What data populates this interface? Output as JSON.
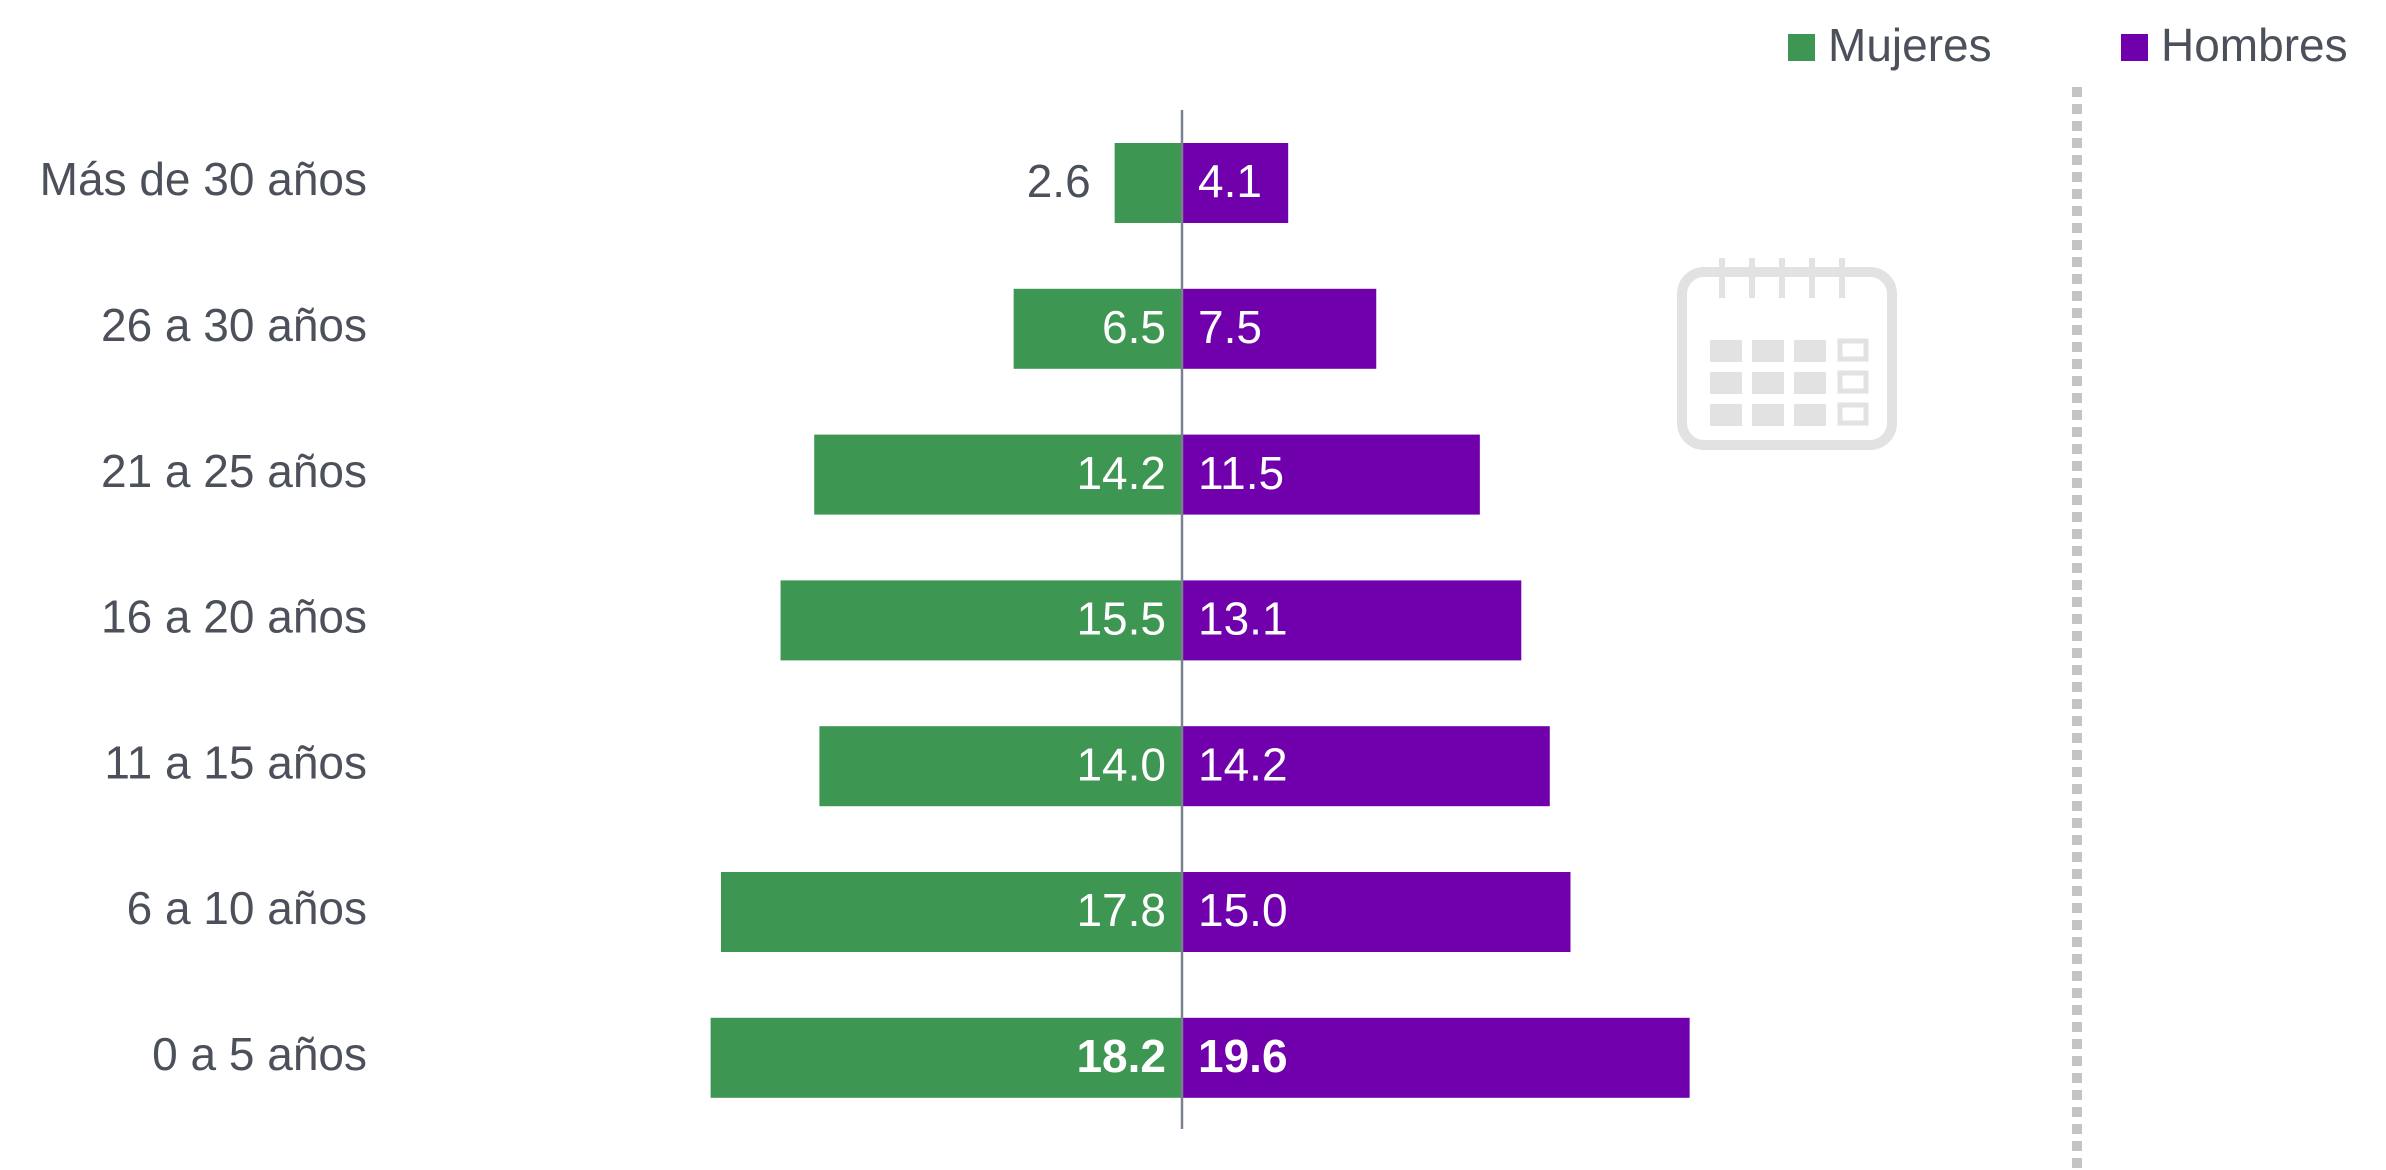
{
  "chart_data": {
    "type": "butterfly",
    "categories": [
      "Más de 30 años",
      "26 a 30 años",
      "21 a 25 años",
      "16 a 20 años",
      "11 a 15 años",
      "6 a 10 años",
      "0 a 5 años"
    ],
    "series": [
      {
        "name": "Mujeres",
        "color": "#3d9651",
        "side": "left",
        "values": [
          2.6,
          6.5,
          14.2,
          15.5,
          14.0,
          17.8,
          18.2
        ],
        "value_labels": [
          "2.6",
          "6.5",
          "14.2",
          "15.5",
          "14.0",
          "17.8",
          "18.2"
        ]
      },
      {
        "name": "Hombres",
        "color": "#7000ac",
        "side": "right",
        "values": [
          4.1,
          7.5,
          11.5,
          13.1,
          14.2,
          15.0,
          19.6
        ],
        "value_labels": [
          "4.1",
          "7.5",
          "11.5",
          "13.1",
          "14.2",
          "15.0",
          "19.6"
        ]
      }
    ],
    "legend": "top-right"
  }
}
